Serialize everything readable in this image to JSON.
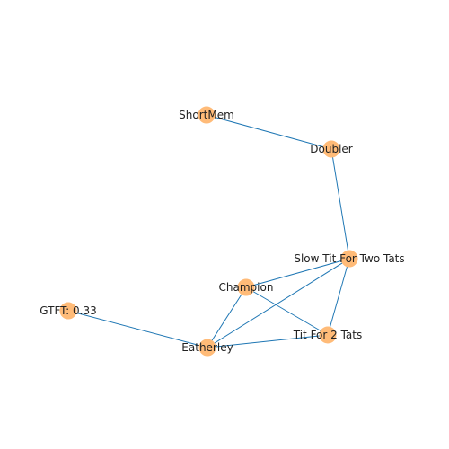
{
  "graph": {
    "node_color": "#ffbb78",
    "edge_color": "#1f77b4",
    "nodes": [
      {
        "id": "shortmem",
        "label": "ShortMem"
      },
      {
        "id": "doubler",
        "label": "Doubler"
      },
      {
        "id": "slow-tft",
        "label": "Slow Tit For Two Tats"
      },
      {
        "id": "champion",
        "label": "Champion"
      },
      {
        "id": "gtft",
        "label": "GTFT: 0.33"
      },
      {
        "id": "tf2t",
        "label": "Tit For 2 Tats"
      },
      {
        "id": "eatherley",
        "label": "Eatherley"
      }
    ],
    "edges": [
      [
        "shortmem",
        "doubler"
      ],
      [
        "doubler",
        "slow-tft"
      ],
      [
        "slow-tft",
        "champion"
      ],
      [
        "slow-tft",
        "eatherley"
      ],
      [
        "slow-tft",
        "tf2t"
      ],
      [
        "champion",
        "tf2t"
      ],
      [
        "champion",
        "eatherley"
      ],
      [
        "gtft",
        "eatherley"
      ],
      [
        "eatherley",
        "tf2t"
      ]
    ]
  }
}
